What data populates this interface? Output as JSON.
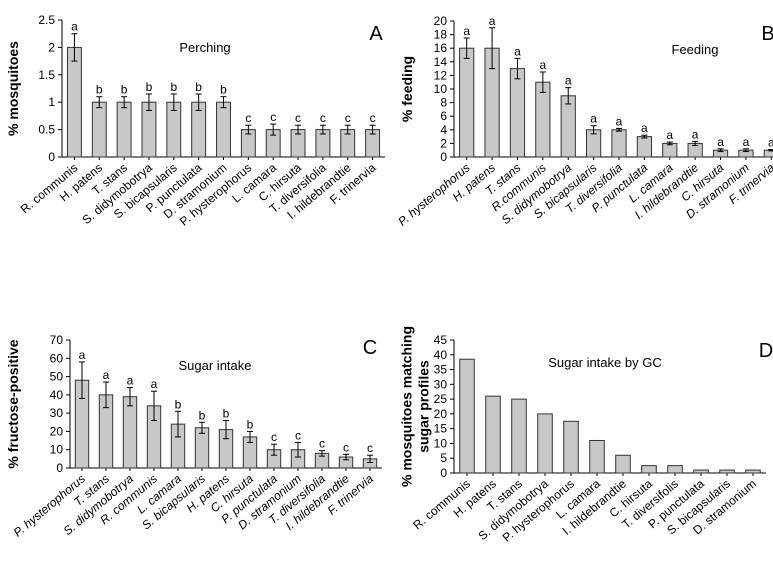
{
  "chart_data": [
    {
      "type": "bar",
      "panel": "A",
      "title": "Perching",
      "y_label": [
        "% mosquitoes"
      ],
      "categories": [
        "R. communis",
        "H. patens",
        "T. stans",
        "S. didymobotrya",
        "S. bicapsularis",
        "P. punctulata",
        "D. stramonium",
        "P. hysterophorus",
        "L. camara",
        "C. hirsuta",
        "T. diversifolia",
        "I. hildebrandtie",
        "F. trinervia"
      ],
      "values": [
        2,
        1,
        1,
        1,
        1,
        1,
        1,
        0.5,
        0.5,
        0.5,
        0.5,
        0.5,
        0.5
      ],
      "errors": [
        0.25,
        0.1,
        0.1,
        0.15,
        0.15,
        0.15,
        0.1,
        0.08,
        0.1,
        0.08,
        0.08,
        0.08,
        0.08
      ],
      "letters": [
        "a",
        "b",
        "b",
        "b",
        "b",
        "b",
        "b",
        "c",
        "c",
        "c",
        "c",
        "c",
        "c"
      ],
      "color": "#c8c8c8",
      "ylim": [
        0,
        2.5
      ],
      "yticks": [
        0,
        0.5,
        1,
        1.5,
        2,
        2.5
      ]
    },
    {
      "type": "bar",
      "panel": "B",
      "title": "Feeding",
      "y_label": [
        "% feeding"
      ],
      "categories": [
        "P. hysterophorus",
        "H. patens",
        "T. stans",
        "R.communis",
        "S. didymobotrya",
        "S. bicapsularis",
        "T. diversifolia",
        "P. punctulata",
        "L. camara",
        "I. hildebrandtie",
        "C. hirsuta",
        "D. stramonium",
        "F. trinervia"
      ],
      "values": [
        16,
        16,
        13,
        11,
        9,
        4,
        4,
        3,
        2,
        2,
        1,
        1,
        1
      ],
      "errors": [
        1.5,
        3,
        1.5,
        1.5,
        1.2,
        0.6,
        0.2,
        0.2,
        0.2,
        0.3,
        0.2,
        0.2,
        0.1
      ],
      "letters": [
        "a",
        "a",
        "a",
        "a",
        "a",
        "a",
        "a",
        "a",
        "a",
        "a",
        "a",
        "a",
        "a"
      ],
      "color": "#c8c8c8",
      "ylim": [
        0,
        20
      ],
      "yticks": [
        0,
        2,
        4,
        6,
        8,
        10,
        12,
        14,
        16,
        18,
        20
      ]
    },
    {
      "type": "bar",
      "panel": "C",
      "title": "Sugar intake",
      "y_label": [
        "% fructose-positive"
      ],
      "categories": [
        "P. hysterophorus",
        "T. stans",
        "S. didymobotrya",
        "R. communis",
        "L. camara",
        "S. bicapsularis",
        "H. patens",
        "C. hirsuta",
        "P. punctulata",
        "D. stramonium",
        "T. diversifolia",
        "I. hildebrandtie",
        "F. trinervia"
      ],
      "values": [
        48,
        40,
        39,
        34,
        24,
        22,
        21,
        17,
        10,
        10,
        8,
        6,
        5
      ],
      "errors": [
        10,
        7,
        5,
        8,
        7,
        3,
        5,
        3,
        3,
        4,
        1.5,
        1.5,
        2
      ],
      "letters": [
        "a",
        "a",
        "a",
        "a",
        "b",
        "b",
        "b",
        "b",
        "c",
        "c",
        "c",
        "c",
        "c"
      ],
      "color": "#c8c8c8",
      "ylim": [
        0,
        70
      ],
      "yticks": [
        0,
        10,
        20,
        30,
        40,
        50,
        60,
        70
      ]
    },
    {
      "type": "bar",
      "panel": "D",
      "title": "Sugar intake by GC",
      "y_label": [
        "% mosquitoes matching",
        "sugar profiles"
      ],
      "categories": [
        "R. communis",
        "H. patens",
        "T. stans",
        "S. didymobotrya",
        "P. hysterophorus",
        "L. camara",
        "I. hildebrandtie",
        "C. hirsuta",
        "T. diversifolis",
        "P. punctulata",
        "S. bicapsularis",
        "D. stramonium"
      ],
      "values": [
        38.5,
        26,
        25,
        20,
        17.5,
        11,
        6,
        2.5,
        2.5,
        1,
        1,
        1
      ],
      "color": "#c8c8c8",
      "ylim": [
        0,
        45
      ],
      "yticks": [
        0,
        5,
        10,
        15,
        20,
        25,
        30,
        35,
        40,
        45
      ]
    }
  ]
}
